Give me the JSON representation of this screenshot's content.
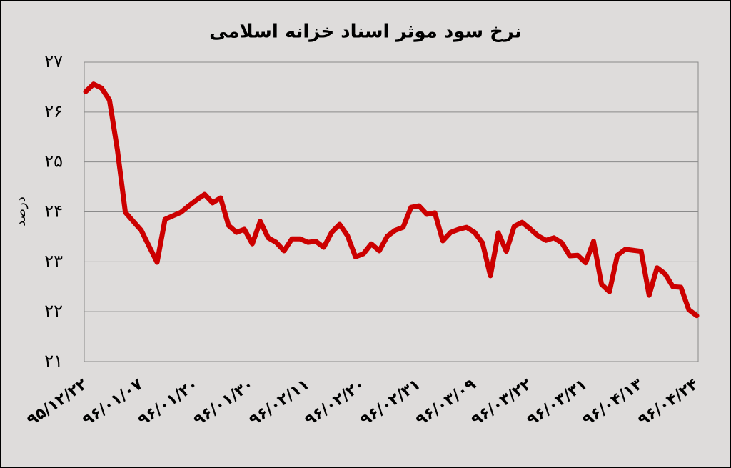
{
  "chart_data": {
    "type": "line",
    "title": "نرخ سود موثر اسناد خزانه اسلامی",
    "y_label": "درصد",
    "categories": [
      "۹۵/۱۲/۲۲",
      null,
      null,
      null,
      null,
      null,
      null,
      "۹۶/۰۱/۰۷",
      null,
      null,
      null,
      null,
      null,
      null,
      "۹۶/۰۱/۲۰",
      null,
      null,
      null,
      null,
      null,
      null,
      "۹۶/۰۱/۳۰",
      null,
      null,
      null,
      null,
      null,
      null,
      "۹۶/۰۲/۱۱",
      null,
      null,
      null,
      null,
      null,
      null,
      "۹۶/۰۲/۲۰",
      null,
      null,
      null,
      null,
      null,
      null,
      "۹۶/۰۲/۳۱",
      null,
      null,
      null,
      null,
      null,
      null,
      "۹۶/۰۳/۰۹",
      null,
      null,
      null,
      null,
      null,
      null,
      "۹۶/۰۳/۲۲",
      null,
      null,
      null,
      null,
      null,
      null,
      "۹۶/۰۳/۳۱",
      null,
      null,
      null,
      null,
      null,
      null,
      "۹۶/۰۴/۱۳",
      null,
      null,
      null,
      null,
      null,
      null,
      "۹۶/۰۴/۲۴"
    ],
    "series": [
      {
        "color": "#cc0000",
        "values": [
          26.41,
          26.56,
          26.48,
          26.24,
          25.24,
          23.99,
          23.81,
          23.63,
          23.31,
          22.99,
          23.85,
          23.92,
          23.99,
          24.12,
          24.24,
          24.35,
          24.18,
          24.28,
          23.73,
          23.59,
          23.65,
          23.36,
          23.81,
          23.48,
          23.39,
          23.22,
          23.46,
          23.46,
          23.39,
          23.41,
          23.29,
          23.59,
          23.75,
          23.52,
          23.1,
          23.16,
          23.36,
          23.22,
          23.51,
          23.63,
          23.69,
          24.09,
          24.12,
          23.95,
          23.98,
          23.42,
          23.59,
          23.65,
          23.69,
          23.59,
          23.38,
          22.72,
          23.58,
          23.21,
          23.71,
          23.79,
          23.66,
          23.52,
          23.43,
          23.48,
          23.38,
          23.12,
          23.13,
          22.98,
          23.41,
          22.55,
          22.4,
          23.13,
          23.25,
          23.23,
          23.21,
          22.33,
          22.88,
          22.76,
          22.5,
          22.49,
          22.04,
          21.92
        ]
      }
    ],
    "ylim": [
      21,
      27
    ],
    "yticks": [
      {
        "value": 21,
        "label": "۲۱"
      },
      {
        "value": 22,
        "label": "۲۲"
      },
      {
        "value": 23,
        "label": "۲۳"
      },
      {
        "value": 24,
        "label": "۲۴"
      },
      {
        "value": 25,
        "label": "۲۵"
      },
      {
        "value": 26,
        "label": "۲۶"
      },
      {
        "value": 27,
        "label": "۲۷"
      }
    ],
    "grid": true
  }
}
